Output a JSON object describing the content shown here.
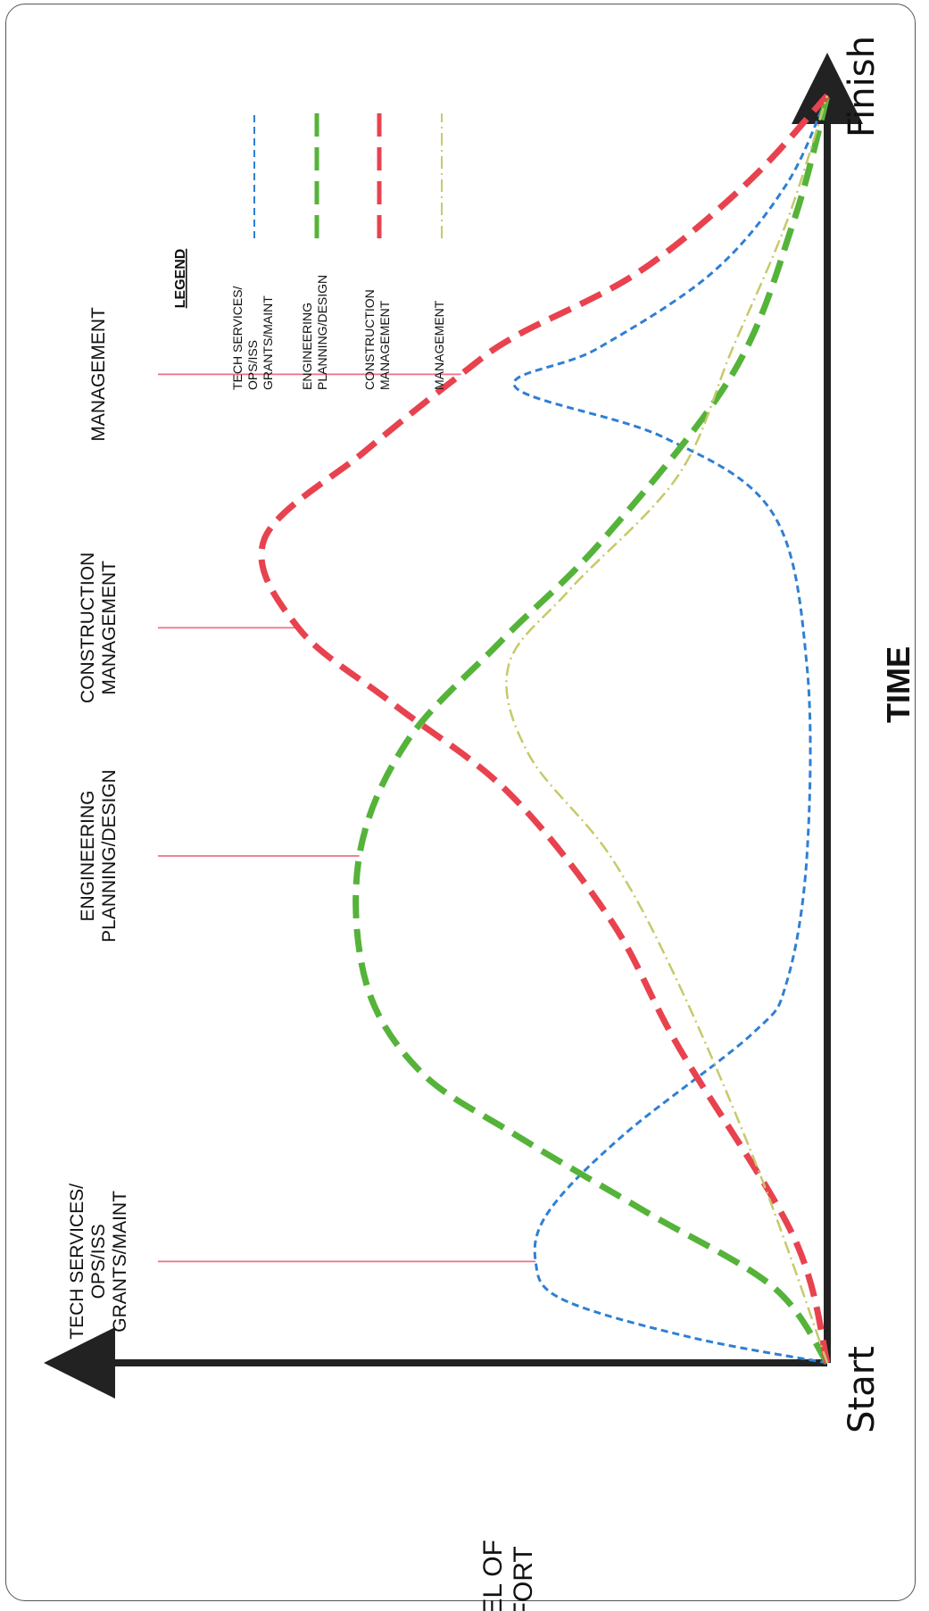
{
  "chart_data": {
    "type": "line",
    "title": "",
    "xlabel": "TIME",
    "ylabel": "LEVEL OF EFFORT",
    "x_start_label": "Start",
    "x_end_label": "Finish",
    "xlim": [
      0,
      100
    ],
    "ylim": [
      0,
      100
    ],
    "grid": false,
    "legend": {
      "title": "LEGEND",
      "position": "top-right",
      "entries": [
        {
          "label_lines": [
            "TECH SERVICES/",
            "OPS/ISS",
            "GRANTS/MAINT"
          ],
          "color": "#2f7fd4",
          "style": "dashed-fine"
        },
        {
          "label_lines": [
            "ENGINEERING",
            "PLANNING/DESIGN"
          ],
          "color": "#55b33a",
          "style": "dashed-heavy"
        },
        {
          "label_lines": [
            "CONSTRUCTION",
            "MANAGEMENT"
          ],
          "color": "#e8424f",
          "style": "dashed-heavy"
        },
        {
          "label_lines": [
            "MANAGEMENT"
          ],
          "color": "#c7c96a",
          "style": "dash-dot"
        }
      ]
    },
    "series": [
      {
        "name": "TECH SERVICES/ OPS/ISS GRANTS/MAINT",
        "color": "#2f7fd4",
        "points": [
          [
            0,
            0
          ],
          [
            2,
            20
          ],
          [
            5,
            39
          ],
          [
            8,
            43
          ],
          [
            12,
            41
          ],
          [
            18,
            30
          ],
          [
            26,
            11
          ],
          [
            30,
            6
          ],
          [
            40,
            3
          ],
          [
            55,
            3
          ],
          [
            67,
            8
          ],
          [
            73,
            24
          ],
          [
            77,
            46
          ],
          [
            80,
            34
          ],
          [
            86,
            17
          ],
          [
            93,
            6
          ],
          [
            100,
            0
          ]
        ]
      },
      {
        "name": "ENGINEERING PLANNING/DESIGN",
        "color": "#55b33a",
        "points": [
          [
            0,
            0
          ],
          [
            6,
            8
          ],
          [
            12,
            27
          ],
          [
            18,
            46
          ],
          [
            23,
            60
          ],
          [
            30,
            68
          ],
          [
            40,
            69
          ],
          [
            49,
            62
          ],
          [
            57,
            48
          ],
          [
            65,
            33
          ],
          [
            78,
            14
          ],
          [
            90,
            5
          ],
          [
            100,
            0
          ]
        ]
      },
      {
        "name": "CONSTRUCTION MANAGEMENT",
        "color": "#e8424f",
        "points": [
          [
            0,
            0
          ],
          [
            10,
            5
          ],
          [
            25,
            22
          ],
          [
            35,
            32
          ],
          [
            45,
            47
          ],
          [
            52,
            64
          ],
          [
            58,
            78
          ],
          [
            65,
            83
          ],
          [
            72,
            68
          ],
          [
            78,
            54
          ],
          [
            81,
            46
          ],
          [
            86,
            28
          ],
          [
            93,
            12
          ],
          [
            100,
            0
          ]
        ]
      },
      {
        "name": "MANAGEMENT",
        "color": "#c7c96a",
        "points": [
          [
            0,
            0
          ],
          [
            15,
            10
          ],
          [
            30,
            22
          ],
          [
            40,
            32
          ],
          [
            48,
            44
          ],
          [
            55,
            47
          ],
          [
            61,
            38
          ],
          [
            70,
            22
          ],
          [
            80,
            14
          ],
          [
            90,
            6
          ],
          [
            100,
            0
          ]
        ]
      }
    ],
    "annotations": [
      {
        "label_lines": [
          "TECH SERVICES/",
          "OPS/ISS",
          "GRANTS/MAINT"
        ],
        "x": 8,
        "y": 43
      },
      {
        "label_lines": [
          "ENGINEERING",
          "PLANNING/DESIGN"
        ],
        "x": 40,
        "y": 69
      },
      {
        "label_lines": [
          "CONSTRUCTION",
          "MANAGEMENT"
        ],
        "x": 58,
        "y": 78
      },
      {
        "label_lines": [
          "MANAGEMENT"
        ],
        "x": 78,
        "y": 54
      }
    ]
  }
}
